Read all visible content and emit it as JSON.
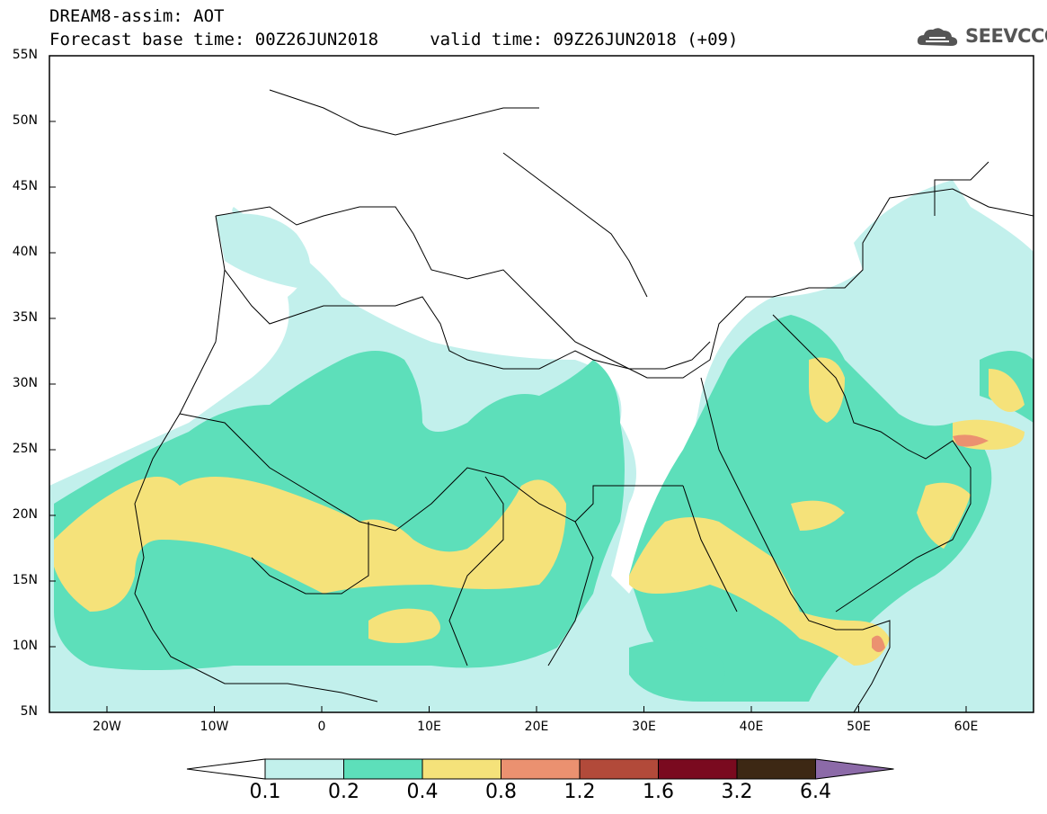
{
  "header": {
    "title_line1": "DREAM8-assim: AOT",
    "title_line2": "Forecast base time: 00Z26JUN2018     valid time: 09Z26JUN2018 (+09)"
  },
  "logo": {
    "text": "SEEVCCC",
    "icon": "cloud-icon"
  },
  "axes": {
    "lat_labels": [
      "55N",
      "50N",
      "45N",
      "40N",
      "35N",
      "30N",
      "25N",
      "20N",
      "15N",
      "10N",
      "5N"
    ],
    "lon_labels": [
      "20W",
      "10W",
      "0",
      "10E",
      "20E",
      "30E",
      "40E",
      "50E",
      "60E"
    ]
  },
  "colorbar": {
    "levels": [
      "0.1",
      "0.2",
      "0.4",
      "0.8",
      "1.2",
      "1.6",
      "3.2",
      "6.4"
    ],
    "colors": [
      "#ffffff",
      "#c2f0ec",
      "#5ddfba",
      "#f5e27a",
      "#eb9170",
      "#b24a3a",
      "#7a0a1f",
      "#3d2814",
      "#8c6aa8"
    ]
  },
  "colors": {
    "aot_0_1_0_2": "#c2f0ec",
    "aot_0_2_0_4": "#5ddfba",
    "aot_0_4_0_8": "#f5e27a",
    "aot_0_8_1_2": "#eb9170",
    "aot_1_2_1_6": "#b24a3a"
  }
}
